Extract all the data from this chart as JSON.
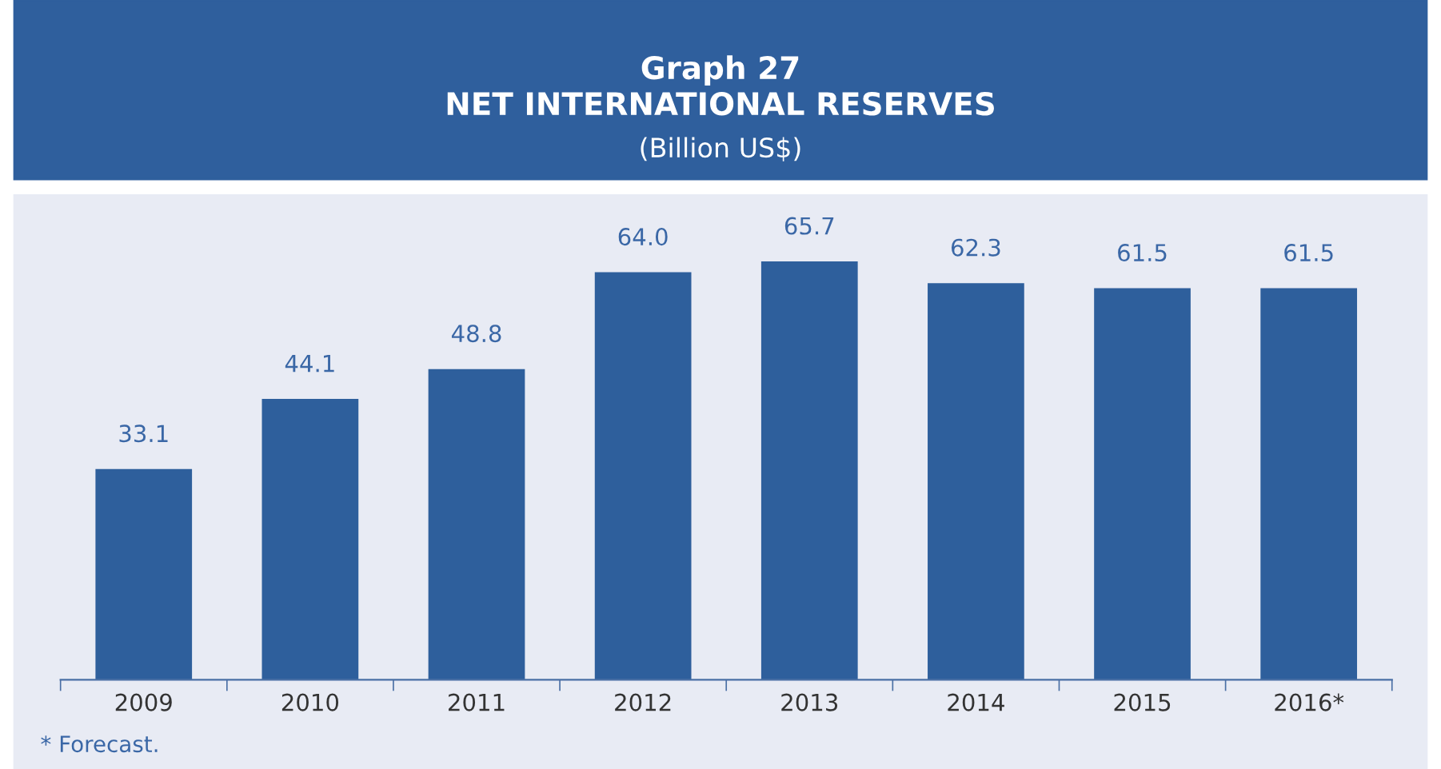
{
  "chart_data": {
    "type": "bar",
    "title": "Graph 27\nNET INTERNATIONAL RESERVES",
    "subtitle": "(Billion US$)",
    "categories": [
      "2009",
      "2010",
      "2011",
      "2012",
      "2013",
      "2014",
      "2015",
      "2016*"
    ],
    "values": [
      33.1,
      44.1,
      48.8,
      64.0,
      65.7,
      62.3,
      61.5,
      61.5
    ],
    "value_labels": [
      "33.1",
      "44.1",
      "48.8",
      "64.0",
      "65.7",
      "62.3",
      "61.5",
      "61.5"
    ],
    "color": "#2e5f9c",
    "grid": false,
    "legend": false,
    "annotations": [
      "* Forecast."
    ]
  }
}
